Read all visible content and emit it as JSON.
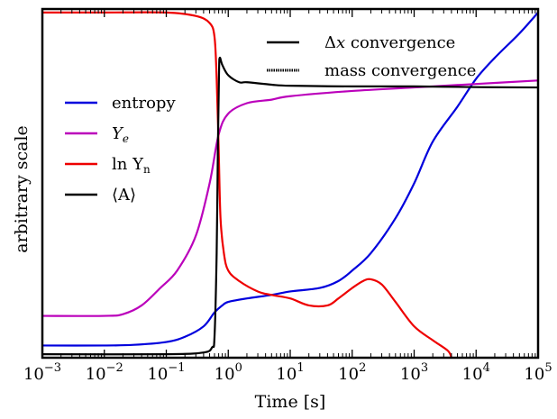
{
  "chart_data": {
    "type": "line",
    "xscale": "log",
    "xlim": [
      0.001,
      100000
    ],
    "ylim": [
      0,
      1
    ],
    "y_ticks_shown": false,
    "xlabel": "Time [s]",
    "ylabel": "arbitrary scale",
    "x_ticks": [
      {
        "value": 0.001,
        "base": "10",
        "exp": "−3"
      },
      {
        "value": 0.01,
        "base": "10",
        "exp": "−2"
      },
      {
        "value": 0.1,
        "base": "10",
        "exp": "−1"
      },
      {
        "value": 1,
        "base": "10",
        "exp": "0"
      },
      {
        "value": 10,
        "base": "10",
        "exp": "1"
      },
      {
        "value": 100,
        "base": "10",
        "exp": "2"
      },
      {
        "value": 1000,
        "base": "10",
        "exp": "3"
      },
      {
        "value": 10000,
        "base": "10",
        "exp": "4"
      },
      {
        "value": 100000,
        "base": "10",
        "exp": "5"
      }
    ],
    "legend_quantities": {
      "placement": "center-left",
      "entries": [
        {
          "label": "entropy",
          "color": "#0000dd"
        },
        {
          "label_main": "Y",
          "label_sub": "e",
          "color": "#bb00bb"
        },
        {
          "label_main": "ln Y",
          "label_sub": "n",
          "color": "#ee0000"
        },
        {
          "label": "⟨A⟩",
          "color": "#000000"
        }
      ]
    },
    "legend_convergence": {
      "placement": "top-right",
      "entries": [
        {
          "label_symbol": "Δ",
          "label_var": "x",
          "label_rest": " convergence",
          "style": "solid"
        },
        {
          "label": "mass convergence",
          "style": "dotted"
        }
      ]
    },
    "series": [
      {
        "color": "#0000dd",
        "points": [
          [
            0.001,
            0.035
          ],
          [
            0.01,
            0.035
          ],
          [
            0.03,
            0.037
          ],
          [
            0.1,
            0.045
          ],
          [
            0.2,
            0.06
          ],
          [
            0.4,
            0.09
          ],
          [
            0.6,
            0.13
          ],
          [
            0.8,
            0.15
          ],
          [
            1,
            0.16
          ],
          [
            2,
            0.17
          ],
          [
            5,
            0.18
          ],
          [
            10,
            0.19
          ],
          [
            30,
            0.2
          ],
          [
            60,
            0.22
          ],
          [
            100,
            0.25
          ],
          [
            200,
            0.3
          ],
          [
            500,
            0.4
          ],
          [
            1000,
            0.5
          ],
          [
            2000,
            0.62
          ],
          [
            5000,
            0.72
          ],
          [
            10000,
            0.8
          ],
          [
            20000,
            0.86
          ],
          [
            50000,
            0.93
          ],
          [
            100000,
            0.99
          ]
        ]
      },
      {
        "color": "#bb00bb",
        "points": [
          [
            0.001,
            0.12
          ],
          [
            0.01,
            0.12
          ],
          [
            0.02,
            0.125
          ],
          [
            0.04,
            0.15
          ],
          [
            0.08,
            0.2
          ],
          [
            0.15,
            0.25
          ],
          [
            0.3,
            0.35
          ],
          [
            0.5,
            0.5
          ],
          [
            0.7,
            0.64
          ],
          [
            1,
            0.7
          ],
          [
            2,
            0.73
          ],
          [
            5,
            0.74
          ],
          [
            10,
            0.75
          ],
          [
            100,
            0.765
          ],
          [
            1000,
            0.775
          ],
          [
            10000,
            0.785
          ],
          [
            100000,
            0.795
          ]
        ]
      },
      {
        "color": "#ee0000",
        "points": [
          [
            0.001,
            0.99
          ],
          [
            0.01,
            0.99
          ],
          [
            0.1,
            0.99
          ],
          [
            0.3,
            0.98
          ],
          [
            0.5,
            0.96
          ],
          [
            0.6,
            0.92
          ],
          [
            0.65,
            0.8
          ],
          [
            0.7,
            0.6
          ],
          [
            0.75,
            0.4
          ],
          [
            0.85,
            0.3
          ],
          [
            1,
            0.25
          ],
          [
            1.5,
            0.22
          ],
          [
            3,
            0.19
          ],
          [
            5,
            0.18
          ],
          [
            10,
            0.17
          ],
          [
            20,
            0.15
          ],
          [
            40,
            0.15
          ],
          [
            60,
            0.17
          ],
          [
            100,
            0.2
          ],
          [
            150,
            0.22
          ],
          [
            200,
            0.225
          ],
          [
            300,
            0.21
          ],
          [
            500,
            0.16
          ],
          [
            1000,
            0.09
          ],
          [
            2000,
            0.05
          ],
          [
            3500,
            0.02
          ],
          [
            4000,
            0.0
          ]
        ]
      },
      {
        "color": "#000000",
        "points": [
          [
            0.001,
            0.01
          ],
          [
            0.1,
            0.01
          ],
          [
            0.4,
            0.015
          ],
          [
            0.55,
            0.03
          ],
          [
            0.6,
            0.06
          ],
          [
            0.65,
            0.3
          ],
          [
            0.68,
            0.6
          ],
          [
            0.71,
            0.82
          ],
          [
            0.73,
            0.86
          ],
          [
            0.8,
            0.84
          ],
          [
            1,
            0.81
          ],
          [
            1.5,
            0.79
          ],
          [
            2,
            0.79
          ],
          [
            5,
            0.783
          ],
          [
            10,
            0.78
          ],
          [
            100,
            0.778
          ],
          [
            1000,
            0.778
          ],
          [
            10000,
            0.776
          ],
          [
            100000,
            0.775
          ]
        ]
      }
    ]
  }
}
